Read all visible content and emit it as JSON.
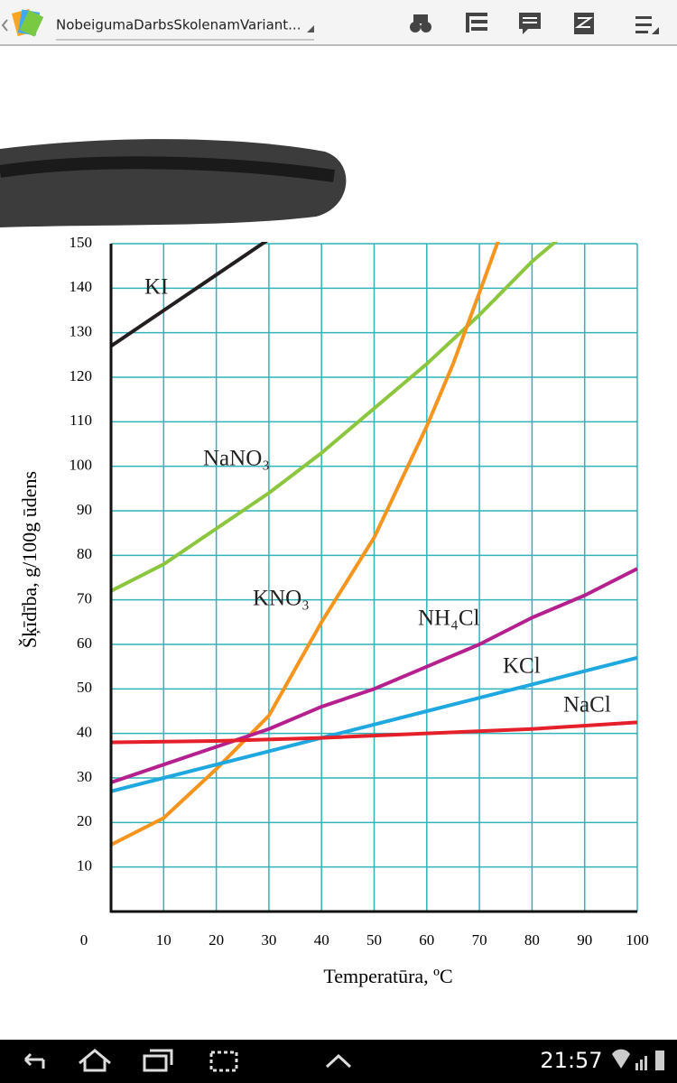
{
  "app_bar": {
    "title": "NobeigumaDarbsSkolenamVariant..."
  },
  "chart_data": {
    "type": "line",
    "x_label": "Temperatūra, ºC",
    "y_label": "Šķīdība, g/100g ūdens",
    "xlim": [
      0,
      100
    ],
    "ylim": [
      0,
      150
    ],
    "xticks": [
      0,
      10,
      20,
      30,
      40,
      50,
      60,
      70,
      80,
      90,
      100
    ],
    "yticks": [
      10,
      20,
      30,
      40,
      50,
      60,
      70,
      80,
      90,
      100,
      110,
      120,
      130,
      140,
      150
    ],
    "grid": true,
    "grid_color": "#2fb3b8",
    "series": [
      {
        "name": "KI",
        "color": "#231f20",
        "x": [
          0,
          10,
          20,
          30
        ],
        "values": [
          127,
          135,
          143,
          151
        ]
      },
      {
        "name": "NaNO₃",
        "color": "#8cc63f",
        "x": [
          0,
          10,
          20,
          30,
          40,
          50,
          60,
          70,
          80,
          85
        ],
        "values": [
          72,
          78,
          86,
          94,
          103,
          113,
          123,
          134,
          146,
          151
        ]
      },
      {
        "name": "KNO₃",
        "color": "#f7941d",
        "x": [
          0,
          10,
          20,
          30,
          40,
          50,
          60,
          65,
          70,
          74
        ],
        "values": [
          15,
          21,
          32,
          44,
          65,
          84,
          109,
          123,
          139,
          152
        ]
      },
      {
        "name": "NH₄Cl",
        "color": "#b5208e",
        "x": [
          0,
          10,
          20,
          30,
          40,
          50,
          60,
          70,
          80,
          90,
          100
        ],
        "values": [
          29,
          33,
          37,
          41,
          46,
          50,
          55,
          60,
          66,
          71,
          77
        ]
      },
      {
        "name": "KCl",
        "color": "#1fa8e0",
        "x": [
          0,
          10,
          20,
          30,
          40,
          50,
          60,
          70,
          80,
          90,
          100
        ],
        "values": [
          27,
          30,
          33,
          36,
          39,
          42,
          45,
          48,
          51,
          54,
          57
        ]
      },
      {
        "name": "NaCl",
        "color": "#e5202a",
        "x": [
          0,
          20,
          40,
          60,
          80,
          100
        ],
        "values": [
          38,
          38.3,
          39,
          40,
          41,
          42.5
        ]
      }
    ]
  },
  "status_bar": {
    "time": "21:57"
  }
}
